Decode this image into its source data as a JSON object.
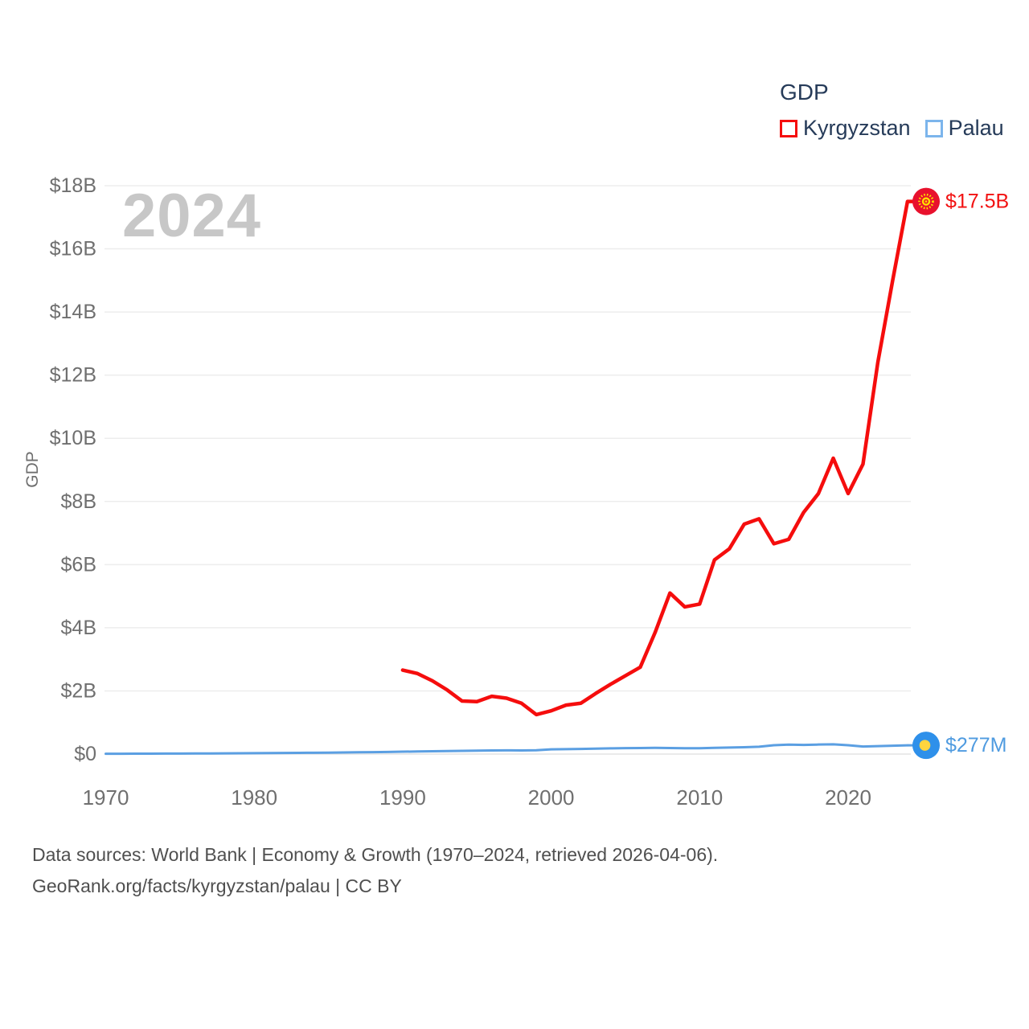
{
  "watermark": "2024",
  "legend": {
    "title": "GDP",
    "items": [
      {
        "label": "Kyrgyzstan",
        "swatch_color": "#f50d0d"
      },
      {
        "label": "Palau",
        "swatch_color": "#7cb5ec"
      }
    ]
  },
  "y_axis_title": "GDP",
  "footer": {
    "line1": "Data sources: World Bank | Economy & Growth (1970–2024, retrieved 2026-04-06).",
    "line2": "GeoRank.org/facts/kyrgyzstan/palau | CC BY"
  },
  "colors": {
    "kyrgyzstan_line": "#f50d0d",
    "palau_line": "#5b9fe2",
    "kyrgyzstan_end_label": "#f21111",
    "palau_end_label": "#4f9be0",
    "kyrgyzstan_marker_red": "#e8112d",
    "kyrgyzstan_sun_yellow": "#ffdf00",
    "palau_marker_blue": "#2e90ea",
    "palau_moon_yellow": "#ffd53e",
    "axis_text": "#6f6f6f",
    "gridline": "#ededed",
    "zero_gridline": "#e4e4e4",
    "legend_text": "#263b59",
    "watermark_gray": "#c7c7c7",
    "footer_text": "#4f4f4f"
  },
  "chart_data": {
    "type": "line",
    "title": "GDP",
    "ylabel": "GDP",
    "unit": "current US$",
    "x_range": [
      1970,
      2024
    ],
    "ylim_billions": [
      0,
      18
    ],
    "grid": true,
    "legend_position": "top-right",
    "y_ticks": [
      {
        "label": "$0",
        "value": 0
      },
      {
        "label": "$2B",
        "value": 2
      },
      {
        "label": "$4B",
        "value": 4
      },
      {
        "label": "$6B",
        "value": 6
      },
      {
        "label": "$8B",
        "value": 8
      },
      {
        "label": "$10B",
        "value": 10
      },
      {
        "label": "$12B",
        "value": 12
      },
      {
        "label": "$14B",
        "value": 14
      },
      {
        "label": "$16B",
        "value": 16
      },
      {
        "label": "$18B",
        "value": 18
      }
    ],
    "x_ticks": [
      {
        "label": "1970",
        "value": 1970
      },
      {
        "label": "1980",
        "value": 1980
      },
      {
        "label": "1990",
        "value": 1990
      },
      {
        "label": "2000",
        "value": 2000
      },
      {
        "label": "2010",
        "value": 2010
      },
      {
        "label": "2020",
        "value": 2020
      }
    ],
    "series": [
      {
        "name": "Kyrgyzstan",
        "color": "#f50d0d",
        "line_width": 4.5,
        "start_year": 1990,
        "values_usd_billions": [
          2.66,
          2.55,
          2.32,
          2.03,
          1.68,
          1.66,
          1.83,
          1.77,
          1.61,
          1.25,
          1.37,
          1.55,
          1.61,
          1.92,
          2.21,
          2.48,
          2.75,
          3.85,
          5.1,
          4.66,
          4.75,
          6.15,
          6.5,
          7.28,
          7.45,
          6.66,
          6.8,
          7.65,
          8.25,
          9.37,
          8.25,
          9.18,
          12.4,
          15.0,
          17.5
        ],
        "end_label": "$17.5B",
        "end_label_color": "#f21111",
        "end_marker": "kyrgyzstan"
      },
      {
        "name": "Palau",
        "color": "#5b9fe2",
        "line_width": 3,
        "start_year": 1970,
        "values_usd_billions": [
          0.01,
          0.011,
          0.012,
          0.013,
          0.015,
          0.016,
          0.018,
          0.02,
          0.022,
          0.025,
          0.028,
          0.031,
          0.034,
          0.038,
          0.042,
          0.046,
          0.051,
          0.056,
          0.062,
          0.068,
          0.075,
          0.082,
          0.088,
          0.095,
          0.101,
          0.108,
          0.114,
          0.118,
          0.116,
          0.121,
          0.15,
          0.156,
          0.162,
          0.172,
          0.181,
          0.188,
          0.191,
          0.196,
          0.191,
          0.186,
          0.186,
          0.196,
          0.206,
          0.216,
          0.231,
          0.281,
          0.3,
          0.29,
          0.301,
          0.31,
          0.281,
          0.24,
          0.25,
          0.263,
          0.277
        ],
        "end_label": "$277M",
        "end_label_color": "#4f9be0",
        "end_marker": "palau"
      }
    ]
  }
}
